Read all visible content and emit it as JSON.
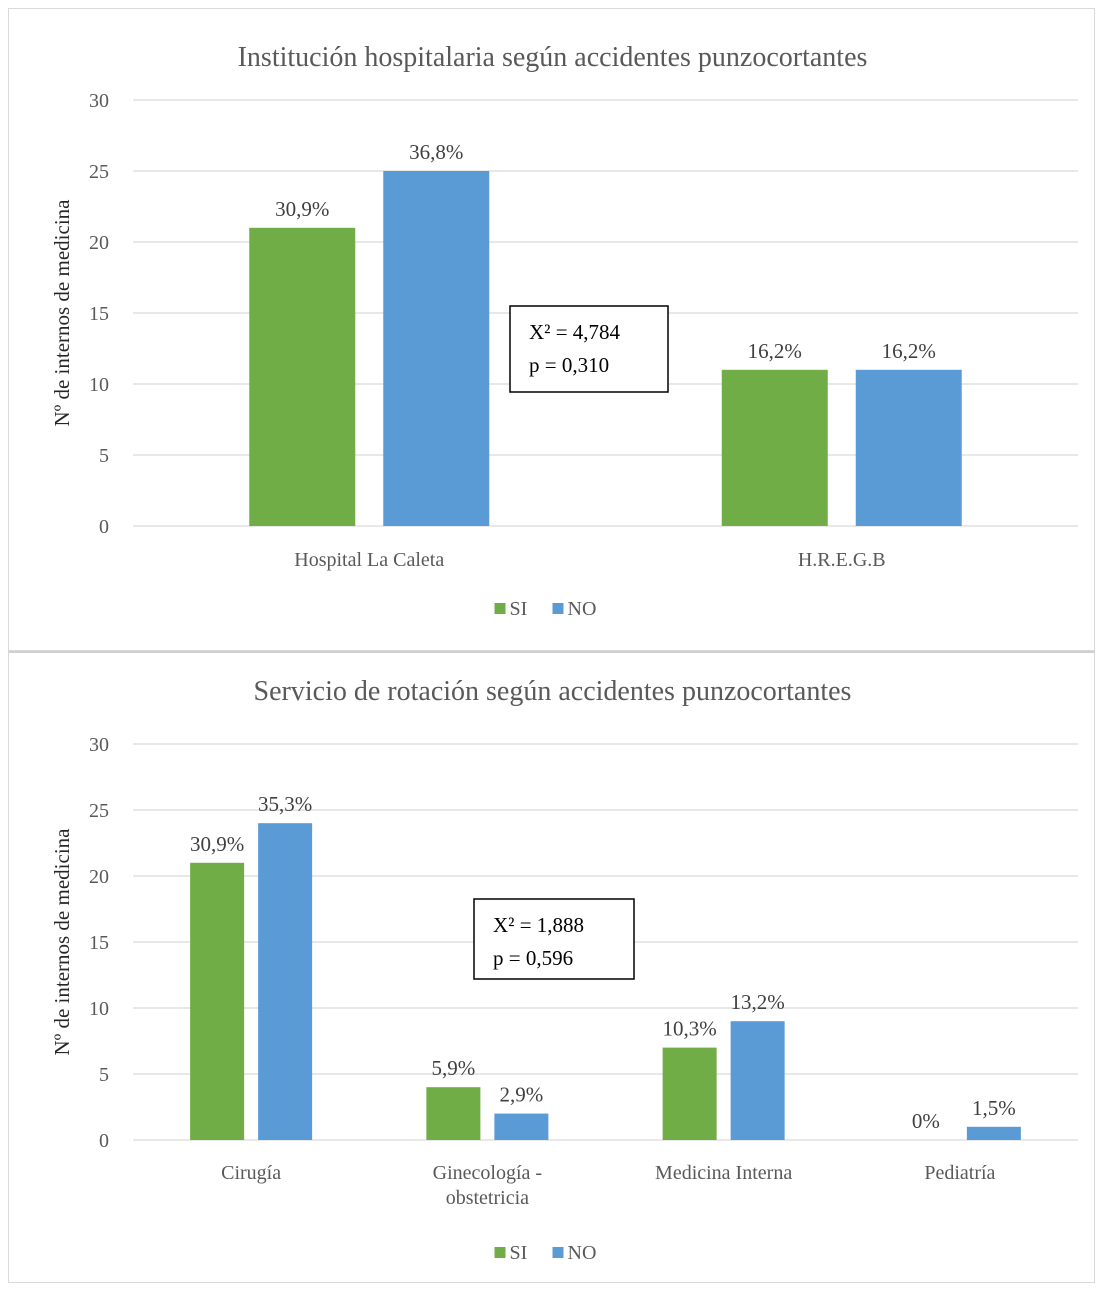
{
  "colors": {
    "SI": "#70ad47",
    "NO": "#5b9bd5"
  },
  "chart_data": [
    {
      "type": "bar",
      "title": "Institución hospitalaria según accidentes punzocortantes",
      "xlabel": "",
      "ylabel": "Nº de internos de medicina",
      "ylim": [
        0,
        30
      ],
      "yticks": [
        0,
        5,
        10,
        15,
        20,
        25,
        30
      ],
      "grid": true,
      "legend": "bottom",
      "categories": [
        "Hospital La Caleta",
        "H.R.E.G.B"
      ],
      "series": [
        {
          "name": "SI",
          "values": [
            21,
            11
          ],
          "labels": [
            "30,9%",
            "16,2%"
          ]
        },
        {
          "name": "NO",
          "values": [
            25,
            11
          ],
          "labels": [
            "36,8%",
            "16,2%"
          ]
        }
      ],
      "annotation": {
        "line1": "X² = 4,784",
        "line2": "p = 0,310"
      }
    },
    {
      "type": "bar",
      "title": "Servicio  de rotación según accidentes punzocortantes",
      "xlabel": "",
      "ylabel": "Nº de internos de medicina",
      "ylim": [
        0,
        30
      ],
      "yticks": [
        0,
        5,
        10,
        15,
        20,
        25,
        30
      ],
      "grid": true,
      "legend": "bottom",
      "categories": [
        "Cirugía",
        "Ginecología - obstetricia",
        "Medicina Interna",
        "Pediatría"
      ],
      "series": [
        {
          "name": "SI",
          "values": [
            21,
            4,
            7,
            0
          ],
          "labels": [
            "30,9%",
            "5,9%",
            "10,3%",
            "0%"
          ]
        },
        {
          "name": "NO",
          "values": [
            24,
            2,
            9,
            1
          ],
          "labels": [
            "35,3%",
            "2,9%",
            "13,2%",
            "1,5%"
          ]
        }
      ],
      "annotation": {
        "line1": "X² = 1,888",
        "line2": "p = 0,596"
      }
    }
  ]
}
